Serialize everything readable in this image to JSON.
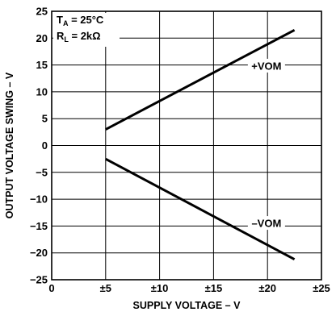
{
  "chart_data": {
    "type": "line",
    "xlabel": "SUPPLY VOLTAGE – V",
    "ylabel": "OUTPUT VOLTAGE SWING – V",
    "xlim": [
      0,
      25
    ],
    "ylim": [
      -25,
      25
    ],
    "x_ticks": [
      {
        "value": 0,
        "label": "0"
      },
      {
        "value": 5,
        "label": "±5"
      },
      {
        "value": 10,
        "label": "±10"
      },
      {
        "value": 15,
        "label": "±15"
      },
      {
        "value": 20,
        "label": "±20"
      },
      {
        "value": 25,
        "label": "±25"
      }
    ],
    "y_ticks": [
      {
        "value": 25,
        "label": "25"
      },
      {
        "value": 20,
        "label": "20"
      },
      {
        "value": 15,
        "label": "15"
      },
      {
        "value": 10,
        "label": "10"
      },
      {
        "value": 5,
        "label": "5"
      },
      {
        "value": 0,
        "label": "0"
      },
      {
        "value": -5,
        "label": "−5"
      },
      {
        "value": -10,
        "label": "−10"
      },
      {
        "value": -15,
        "label": "−15"
      },
      {
        "value": -20,
        "label": "−20"
      },
      {
        "value": -25,
        "label": "−25"
      }
    ],
    "grid": true,
    "conditions": {
      "ta_sym": "T",
      "ta_sub": "A",
      "ta_value": " = 25°C",
      "rl_sym": "R",
      "rl_sub": "L",
      "rl_value": " = 2kΩ"
    },
    "series": [
      {
        "name": "+VOM",
        "x": [
          5,
          22.5
        ],
        "y": [
          3,
          21.5
        ],
        "label_at": [
          19.9,
          14.8
        ]
      },
      {
        "name": "–VOM",
        "x": [
          5,
          22.5
        ],
        "y": [
          -2.5,
          -21.2
        ],
        "label_at": [
          19.9,
          -14.5
        ]
      }
    ]
  }
}
